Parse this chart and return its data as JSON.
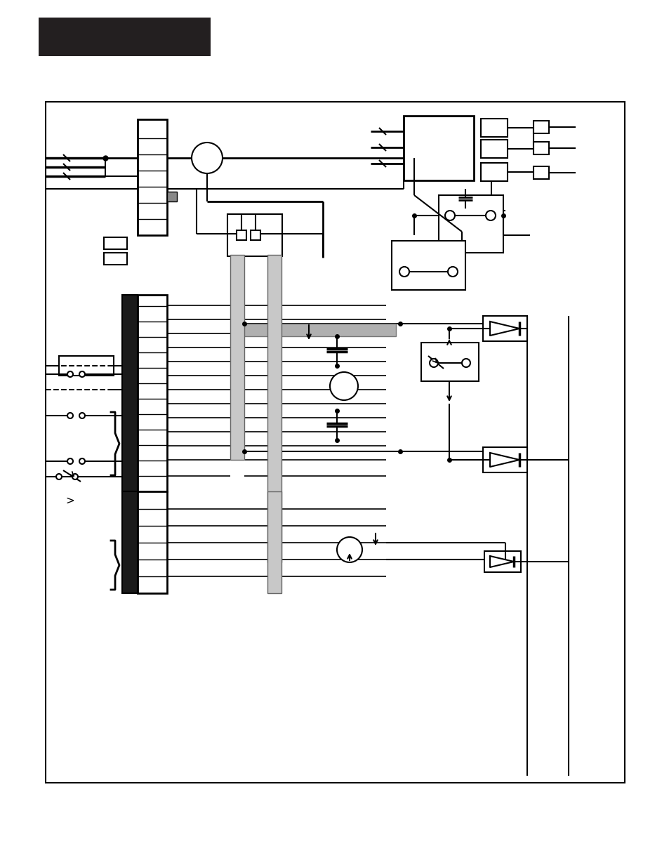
{
  "bg_color": "#ffffff",
  "lc": "#000000",
  "gc": "#aaaaaa",
  "fig_width": 9.54,
  "fig_height": 12.35,
  "dpi": 100
}
